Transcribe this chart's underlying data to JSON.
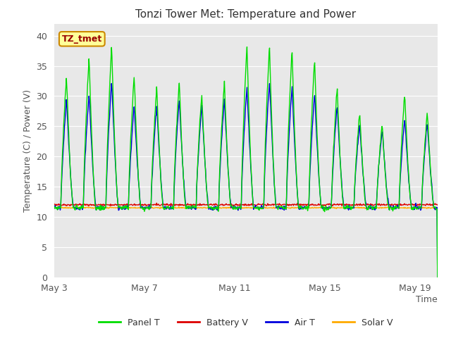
{
  "title": "Tonzi Tower Met: Temperature and Power",
  "xlabel": "Time",
  "ylabel": "Temperature (C) / Power (V)",
  "annotation": "TZ_tmet",
  "xlim_start": 0,
  "xlim_end": 17,
  "ylim": [
    0,
    42
  ],
  "yticks": [
    0,
    5,
    10,
    15,
    20,
    25,
    30,
    35,
    40
  ],
  "xtick_labels": [
    "May 3",
    "May 7",
    "May 11",
    "May 15",
    "May 19"
  ],
  "xtick_positions": [
    0,
    4,
    8,
    12,
    16
  ],
  "bg_color": "#e8e8e8",
  "fig_color": "#ffffff",
  "grid_color": "#ffffff",
  "panel_t_color": "#00dd00",
  "battery_v_color": "#dd0000",
  "air_t_color": "#0000dd",
  "solar_v_color": "#ffaa00",
  "legend_labels": [
    "Panel T",
    "Battery V",
    "Air T",
    "Solar V"
  ],
  "title_fontsize": 11,
  "axis_label_fontsize": 9,
  "tick_fontsize": 9,
  "legend_fontsize": 9
}
